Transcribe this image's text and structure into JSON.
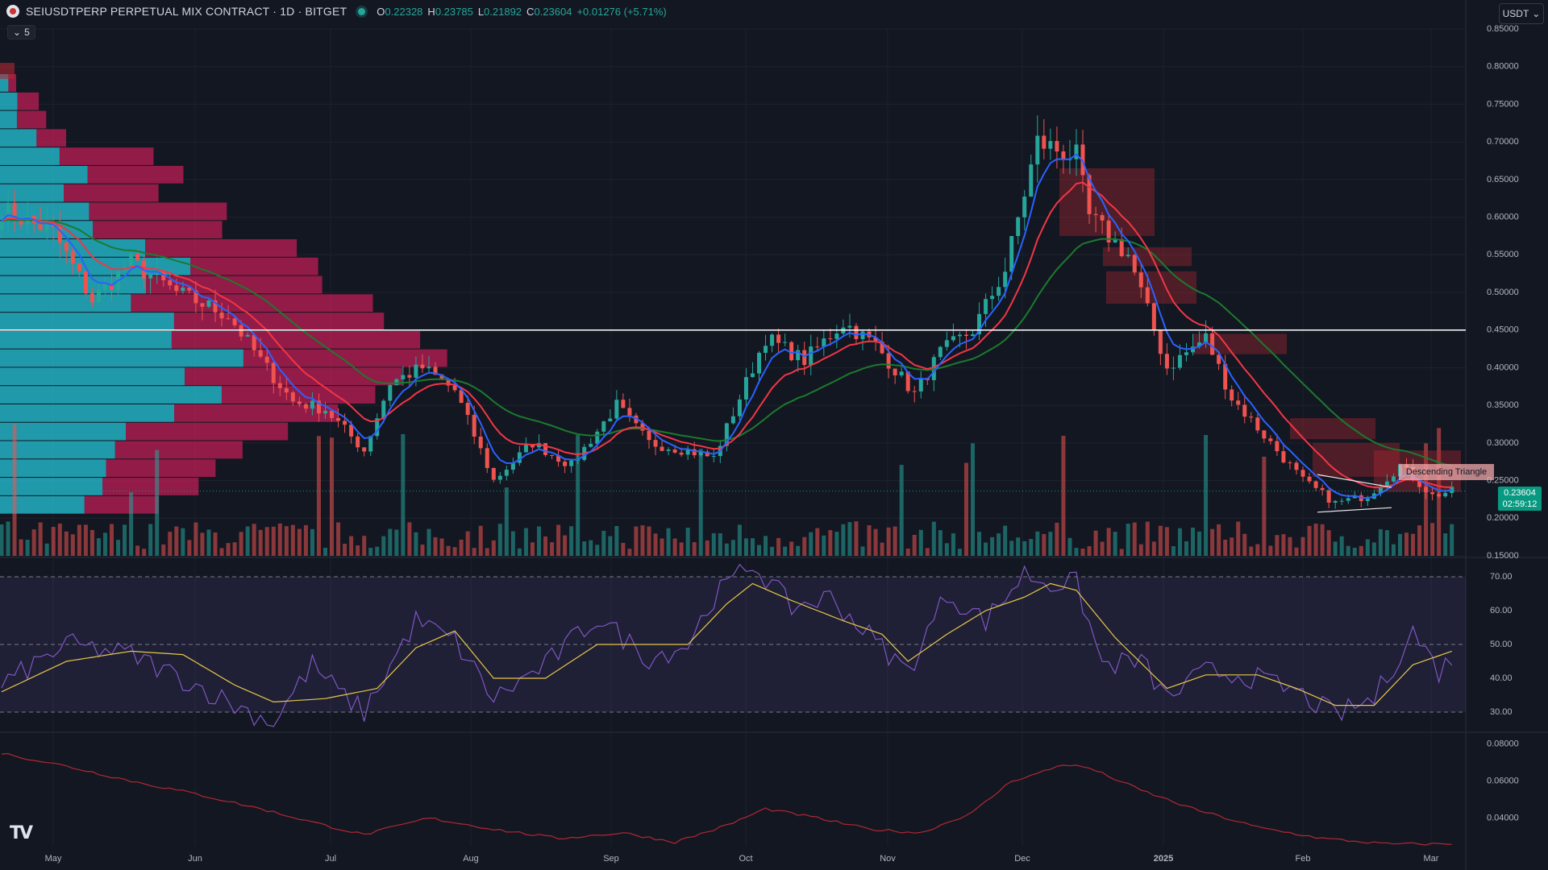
{
  "header": {
    "title": "SEIUSDTPERP PERPETUAL MIX CONTRACT · 1D · BITGET",
    "ohlc": {
      "open_label": "O",
      "open": "0.22328",
      "high_label": "H",
      "high": "0.23785",
      "low_label": "L",
      "low": "0.21892",
      "close_label": "C",
      "close": "0.23604",
      "change": "+0.01276 (+5.71%)"
    },
    "indicator_count": "5",
    "currency": "USDT"
  },
  "last_price": {
    "value": "0.23604",
    "countdown": "02:59:12"
  },
  "pattern_label": "Descending Triangle",
  "logo_text": "TV",
  "colors": {
    "background": "#131722",
    "up": "#26a69a",
    "down": "#ef5350",
    "ema_fast": "#2962ff",
    "ema_mid": "#f23645",
    "ema_slow": "#1b7a2e",
    "rsi": "#7e57c2",
    "rsi_ma": "#e6c84a",
    "lower_line": "#b22833",
    "price_line": "#ffffff"
  },
  "chart_data": {
    "type": "line",
    "axes": {
      "price": {
        "ticks": [
          "0.85000",
          "0.80000",
          "0.75000",
          "0.70000",
          "0.65000",
          "0.60000",
          "0.55000",
          "0.50000",
          "0.45000",
          "0.40000",
          "0.35000",
          "0.30000",
          "0.25000",
          "0.20000",
          "0.15000"
        ],
        "range": [
          0.15,
          0.85
        ]
      },
      "rsi": {
        "ticks": [
          "70.00",
          "60.00",
          "50.00",
          "40.00",
          "30.00"
        ],
        "range": [
          25,
          75
        ],
        "band": [
          30,
          70
        ]
      },
      "lower": {
        "ticks": [
          "0.08000",
          "0.06000",
          "0.04000"
        ],
        "range": [
          0.025,
          0.085
        ]
      },
      "time": {
        "labels": [
          "May",
          "Jun",
          "Jul",
          "Aug",
          "Sep",
          "Oct",
          "Nov",
          "Dec",
          "2025",
          "Feb",
          "Mar"
        ]
      }
    },
    "horizontal_level": 0.45,
    "close_anchors": [
      [
        0,
        0.61
      ],
      [
        8,
        0.58
      ],
      [
        14,
        0.49
      ],
      [
        20,
        0.54
      ],
      [
        27,
        0.5
      ],
      [
        35,
        0.47
      ],
      [
        40,
        0.41
      ],
      [
        45,
        0.355
      ],
      [
        50,
        0.345
      ],
      [
        56,
        0.29
      ],
      [
        60,
        0.38
      ],
      [
        65,
        0.4
      ],
      [
        70,
        0.37
      ],
      [
        76,
        0.25
      ],
      [
        82,
        0.3
      ],
      [
        88,
        0.27
      ],
      [
        95,
        0.35
      ],
      [
        100,
        0.3
      ],
      [
        106,
        0.29
      ],
      [
        110,
        0.28
      ],
      [
        118,
        0.44
      ],
      [
        124,
        0.41
      ],
      [
        130,
        0.46
      ],
      [
        135,
        0.43
      ],
      [
        141,
        0.365
      ],
      [
        145,
        0.42
      ],
      [
        150,
        0.45
      ],
      [
        155,
        0.53
      ],
      [
        160,
        0.7
      ],
      [
        166,
        0.68
      ],
      [
        168,
        0.6
      ],
      [
        174,
        0.55
      ],
      [
        180,
        0.4
      ],
      [
        186,
        0.44
      ],
      [
        190,
        0.36
      ],
      [
        196,
        0.3
      ],
      [
        201,
        0.25
      ],
      [
        206,
        0.22
      ],
      [
        211,
        0.23
      ],
      [
        216,
        0.27
      ],
      [
        221,
        0.23
      ],
      [
        224,
        0.236
      ]
    ],
    "rsi_anchors": [
      [
        0,
        38
      ],
      [
        10,
        50
      ],
      [
        20,
        47
      ],
      [
        30,
        38
      ],
      [
        36,
        32
      ],
      [
        42,
        27
      ],
      [
        48,
        44
      ],
      [
        52,
        36
      ],
      [
        56,
        30
      ],
      [
        64,
        57
      ],
      [
        70,
        51
      ],
      [
        76,
        34
      ],
      [
        84,
        44
      ],
      [
        92,
        58
      ],
      [
        100,
        46
      ],
      [
        106,
        50
      ],
      [
        110,
        64
      ],
      [
        116,
        74
      ],
      [
        122,
        61
      ],
      [
        128,
        64
      ],
      [
        136,
        49
      ],
      [
        140,
        42
      ],
      [
        146,
        65
      ],
      [
        152,
        57
      ],
      [
        158,
        71
      ],
      [
        162,
        68
      ],
      [
        166,
        68
      ],
      [
        170,
        44
      ],
      [
        176,
        45
      ],
      [
        180,
        34
      ],
      [
        186,
        42
      ],
      [
        192,
        41
      ],
      [
        200,
        36
      ],
      [
        206,
        29
      ],
      [
        212,
        34
      ],
      [
        218,
        54
      ],
      [
        222,
        42
      ],
      [
        224,
        46
      ]
    ],
    "rsi_ma_anchors": [
      [
        0,
        36
      ],
      [
        10,
        45
      ],
      [
        20,
        48
      ],
      [
        28,
        47
      ],
      [
        36,
        38
      ],
      [
        42,
        33
      ],
      [
        50,
        34
      ],
      [
        58,
        37
      ],
      [
        64,
        49
      ],
      [
        70,
        54
      ],
      [
        76,
        40
      ],
      [
        84,
        40
      ],
      [
        92,
        50
      ],
      [
        100,
        50
      ],
      [
        106,
        50
      ],
      [
        112,
        62
      ],
      [
        116,
        68
      ],
      [
        122,
        63
      ],
      [
        130,
        57
      ],
      [
        136,
        53
      ],
      [
        140,
        45
      ],
      [
        146,
        53
      ],
      [
        152,
        60
      ],
      [
        158,
        64
      ],
      [
        162,
        68
      ],
      [
        166,
        66
      ],
      [
        172,
        52
      ],
      [
        180,
        37
      ],
      [
        186,
        41
      ],
      [
        194,
        41
      ],
      [
        200,
        37
      ],
      [
        206,
        32
      ],
      [
        212,
        32
      ],
      [
        218,
        44
      ],
      [
        224,
        48
      ]
    ],
    "lower_anchors": [
      [
        0,
        0.075
      ],
      [
        10,
        0.068
      ],
      [
        20,
        0.06
      ],
      [
        30,
        0.053
      ],
      [
        40,
        0.045
      ],
      [
        50,
        0.036
      ],
      [
        56,
        0.031
      ],
      [
        66,
        0.04
      ],
      [
        76,
        0.034
      ],
      [
        86,
        0.029
      ],
      [
        96,
        0.032
      ],
      [
        104,
        0.027
      ],
      [
        112,
        0.036
      ],
      [
        118,
        0.045
      ],
      [
        126,
        0.04
      ],
      [
        134,
        0.034
      ],
      [
        142,
        0.032
      ],
      [
        150,
        0.043
      ],
      [
        156,
        0.06
      ],
      [
        160,
        0.064
      ],
      [
        164,
        0.069
      ],
      [
        168,
        0.067
      ],
      [
        176,
        0.055
      ],
      [
        184,
        0.045
      ],
      [
        194,
        0.035
      ],
      [
        204,
        0.029
      ],
      [
        214,
        0.026
      ],
      [
        224,
        0.026
      ]
    ]
  }
}
